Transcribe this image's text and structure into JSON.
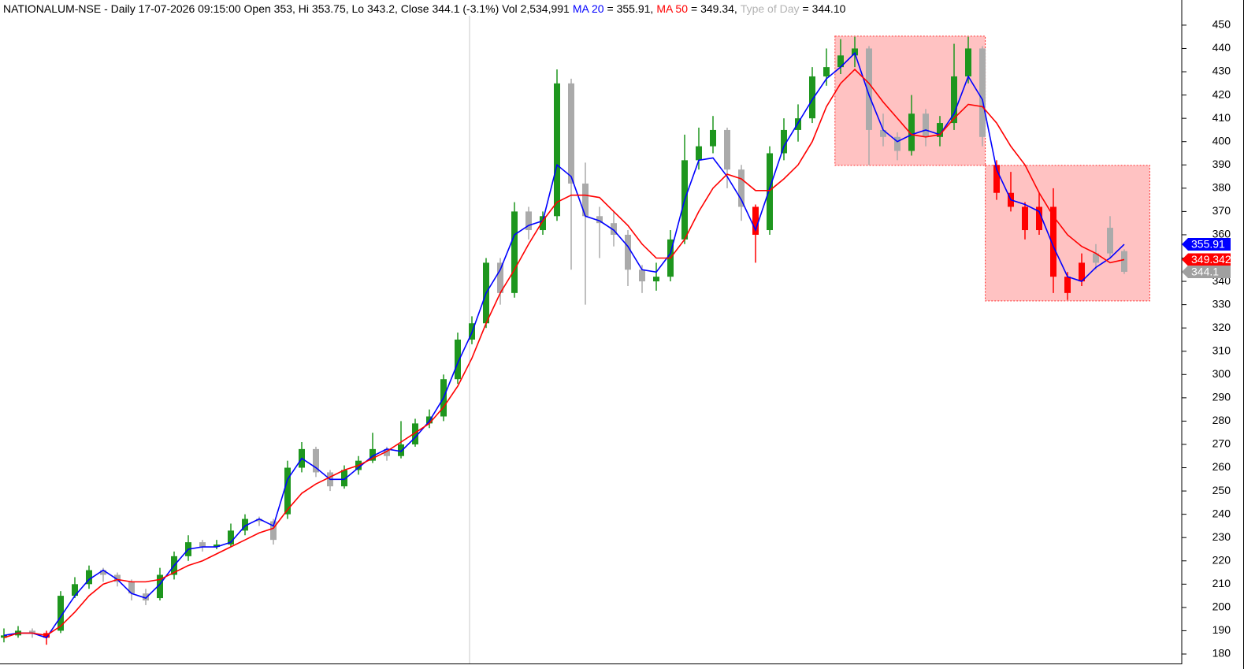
{
  "chart_data": {
    "type": "candlestick",
    "header": [
      {
        "text": "NATIONALUM-NSE - Daily 17-07-2026 09:15:00 Open 353, Hi 353.75, Lo 343.2, Close 344.1 (-3.1%) Vol 2,534,991",
        "color": "#000000"
      },
      {
        "text": "MA 20",
        "color": "#0000ff"
      },
      {
        "text": "= 355.91,",
        "color": "#000000"
      },
      {
        "text": "MA 50",
        "color": "#ff0000"
      },
      {
        "text": "= 349.34,",
        "color": "#000000"
      },
      {
        "text": "Type of Day",
        "color": "#b4b4b4"
      },
      {
        "text": "= 344.10",
        "color": "#000000"
      }
    ],
    "open": [
      187,
      188,
      190,
      189,
      190,
      205,
      210,
      216,
      214,
      211,
      206,
      204,
      214,
      222,
      228,
      226,
      227,
      233,
      238,
      237,
      240,
      260,
      268,
      258,
      252,
      259,
      263,
      268,
      265,
      270,
      279,
      282,
      298,
      315,
      322,
      348,
      335,
      370,
      362,
      368,
      425,
      382,
      368,
      365,
      360,
      345,
      340,
      342,
      358,
      392,
      398,
      405,
      388,
      372,
      362,
      395,
      405,
      410,
      428,
      432,
      437,
      440,
      405,
      402,
      396,
      412,
      402,
      408,
      428,
      440,
      390,
      378,
      372,
      362,
      372,
      342,
      340,
      348,
      352,
      353
    ],
    "high": [
      191,
      192,
      191,
      190,
      207,
      213,
      218,
      217,
      215,
      212,
      208,
      217,
      224,
      231,
      229,
      229,
      236,
      240,
      239,
      238,
      263,
      271,
      269,
      259,
      261,
      265,
      275,
      269,
      280,
      281,
      285,
      300,
      318,
      325,
      350,
      350,
      374,
      372,
      370,
      431,
      427,
      391,
      372,
      370,
      362,
      347,
      348,
      362,
      403,
      406,
      411,
      406,
      390,
      373,
      398,
      410,
      416,
      432,
      440,
      444,
      445,
      441,
      412,
      404,
      420,
      414,
      411,
      442,
      445,
      441,
      392,
      387,
      374,
      378,
      380,
      344,
      352,
      356,
      368,
      353.75
    ],
    "low": [
      185,
      187,
      187,
      184,
      189,
      204,
      208,
      211,
      209,
      203,
      201,
      203,
      212,
      220,
      224,
      225,
      226,
      231,
      235,
      227,
      238,
      258,
      256,
      250,
      251,
      257,
      262,
      263,
      264,
      269,
      277,
      280,
      296,
      313,
      320,
      330,
      333,
      358,
      360,
      366,
      345,
      330,
      350,
      355,
      338,
      335,
      336,
      340,
      356,
      388,
      395,
      380,
      366,
      348,
      360,
      392,
      400,
      408,
      424,
      429,
      432,
      390,
      398,
      392,
      394,
      398,
      398,
      405,
      425,
      398,
      375,
      370,
      358,
      360,
      335,
      332,
      338,
      345,
      350,
      343.2
    ],
    "close": [
      188,
      190,
      189,
      187,
      205,
      210,
      216,
      214,
      211,
      206,
      203,
      214,
      222,
      228,
      226,
      227,
      233,
      238,
      237,
      229,
      260,
      268,
      258,
      252,
      259,
      263,
      268,
      265,
      270,
      279,
      282,
      298,
      315,
      322,
      348,
      335,
      370,
      362,
      368,
      425,
      382,
      368,
      365,
      360,
      345,
      340,
      342,
      358,
      392,
      398,
      405,
      388,
      372,
      360,
      395,
      405,
      410,
      428,
      432,
      437,
      440,
      405,
      402,
      396,
      412,
      402,
      408,
      428,
      440,
      402,
      378,
      372,
      362,
      372,
      342,
      335,
      348,
      352,
      363,
      344.1
    ],
    "colors": [
      "#1e961e",
      "#1e961e",
      "#aaaaaa",
      "#ff0000",
      "#1e961e",
      "#1e961e",
      "#1e961e",
      "#aaaaaa",
      "#aaaaaa",
      "#aaaaaa",
      "#aaaaaa",
      "#1e961e",
      "#1e961e",
      "#1e961e",
      "#aaaaaa",
      "#1e961e",
      "#1e961e",
      "#1e961e",
      "#aaaaaa",
      "#aaaaaa",
      "#1e961e",
      "#1e961e",
      "#aaaaaa",
      "#aaaaaa",
      "#1e961e",
      "#1e961e",
      "#1e961e",
      "#aaaaaa",
      "#1e961e",
      "#1e961e",
      "#1e961e",
      "#1e961e",
      "#1e961e",
      "#1e961e",
      "#1e961e",
      "#aaaaaa",
      "#1e961e",
      "#aaaaaa",
      "#1e961e",
      "#1e961e",
      "#aaaaaa",
      "#aaaaaa",
      "#aaaaaa",
      "#aaaaaa",
      "#aaaaaa",
      "#aaaaaa",
      "#1e961e",
      "#1e961e",
      "#1e961e",
      "#1e961e",
      "#1e961e",
      "#aaaaaa",
      "#aaaaaa",
      "#ff0000",
      "#1e961e",
      "#1e961e",
      "#1e961e",
      "#1e961e",
      "#1e961e",
      "#1e961e",
      "#1e961e",
      "#aaaaaa",
      "#aaaaaa",
      "#aaaaaa",
      "#1e961e",
      "#aaaaaa",
      "#1e961e",
      "#1e961e",
      "#1e961e",
      "#aaaaaa",
      "#ff0000",
      "#ff0000",
      "#ff0000",
      "#ff0000",
      "#ff0000",
      "#ff0000",
      "#ff0000",
      "#aaaaaa",
      "#aaaaaa",
      "#aaaaaa"
    ],
    "series": [
      {
        "name": "MA 20",
        "color": "#0000ff",
        "values": [
          188,
          189,
          189,
          187,
          196,
          205,
          212,
          216,
          212,
          206,
          204,
          210,
          218,
          225,
          226,
          226,
          228,
          235,
          238,
          235,
          255,
          264,
          260,
          255,
          255,
          260,
          265,
          268,
          267,
          273,
          280,
          290,
          305,
          318,
          335,
          345,
          360,
          364,
          366,
          390,
          385,
          368,
          366,
          362,
          355,
          345,
          344,
          352,
          375,
          392,
          393,
          385,
          375,
          362,
          380,
          398,
          408,
          418,
          427,
          432,
          438,
          420,
          405,
          400,
          403,
          405,
          403,
          412,
          428,
          418,
          388,
          375,
          373,
          370,
          355,
          342,
          340,
          346,
          350,
          355.91
        ]
      },
      {
        "name": "MA 50",
        "color": "#ff0000",
        "values": [
          187,
          189,
          189,
          188,
          192,
          198,
          205,
          210,
          212,
          211,
          211,
          212,
          215,
          218,
          220,
          223,
          226,
          229,
          232,
          234,
          242,
          249,
          253,
          256,
          259,
          261,
          264,
          267,
          271,
          275,
          279,
          286,
          295,
          307,
          322,
          335,
          345,
          356,
          366,
          374,
          377,
          377,
          376,
          370,
          364,
          356,
          350,
          350,
          358,
          370,
          380,
          386,
          384,
          379,
          379,
          384,
          390,
          400,
          415,
          425,
          431,
          425,
          417,
          410,
          403,
          402,
          403,
          410,
          416,
          415,
          408,
          398,
          390,
          378,
          368,
          360,
          355,
          352,
          348,
          349.34
        ]
      }
    ],
    "badges": [
      {
        "value": 355.91,
        "color": "#0000ff"
      },
      {
        "value": 349.342,
        "color": "#ff0000"
      },
      {
        "value": 344.1,
        "color": "#a0a0a0"
      }
    ],
    "shaded_regions": [
      {
        "x": [
          58.6,
          69.2
        ],
        "y": [
          389.8,
          445.3
        ]
      },
      {
        "x": [
          69.2,
          80.8
        ],
        "y": [
          331.6,
          389.8
        ]
      }
    ],
    "ylim": [
      175.6,
      460.8
    ],
    "yticks": [
      180,
      190,
      200,
      210,
      220,
      230,
      240,
      250,
      260,
      270,
      280,
      290,
      300,
      310,
      320,
      330,
      340,
      350,
      360,
      370,
      380,
      390,
      400,
      410,
      420,
      430,
      440,
      450
    ]
  }
}
